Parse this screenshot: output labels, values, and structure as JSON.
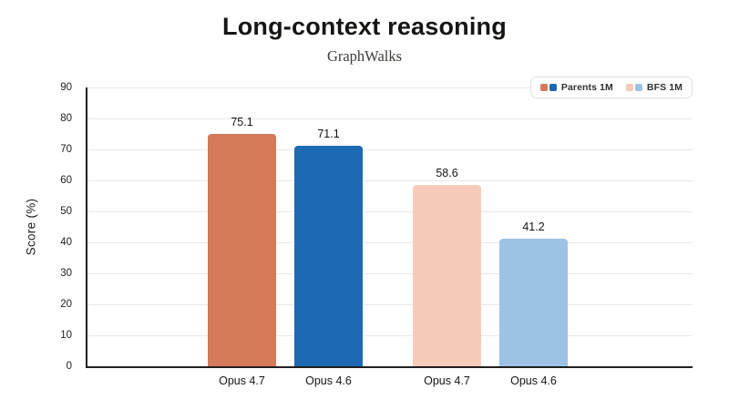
{
  "page": {
    "background": "#ffffff"
  },
  "chart_data": {
    "type": "bar",
    "title": "Long-context reasoning",
    "subtitle": "GraphWalks",
    "ylabel": "Score (%)",
    "ylim": [
      0,
      90
    ],
    "yticks": [
      0,
      10,
      20,
      30,
      40,
      50,
      60,
      70,
      80,
      90
    ],
    "grid": true,
    "legend_position": "top-right",
    "categories": [
      "Opus 4.7",
      "Opus 4.6",
      "Opus 4.7",
      "Opus 4.6"
    ],
    "values": [
      75.1,
      71.1,
      58.6,
      41.2
    ],
    "bar_colors": [
      "#d4795a",
      "#1d6ab2",
      "#f6cbba",
      "#9cc2e5"
    ],
    "series": [
      {
        "name": "Parents 1M",
        "categories": [
          "Opus 4.7",
          "Opus 4.6"
        ],
        "values": [
          75.1,
          71.1
        ],
        "colors": [
          "#d4795a",
          "#1d6ab2"
        ]
      },
      {
        "name": "BFS 1M",
        "categories": [
          "Opus 4.7",
          "Opus 4.6"
        ],
        "values": [
          58.6,
          41.2
        ],
        "colors": [
          "#f6cbba",
          "#9cc2e5"
        ]
      }
    ],
    "legend": [
      {
        "label": "Parents 1M",
        "swatches": [
          "#d4795a",
          "#1d6ab2"
        ]
      },
      {
        "label": "BFS 1M",
        "swatches": [
          "#f6cbba",
          "#9cc2e5"
        ]
      }
    ],
    "axis_color": "#21201e",
    "gridline_color": "#e8e8e8"
  }
}
